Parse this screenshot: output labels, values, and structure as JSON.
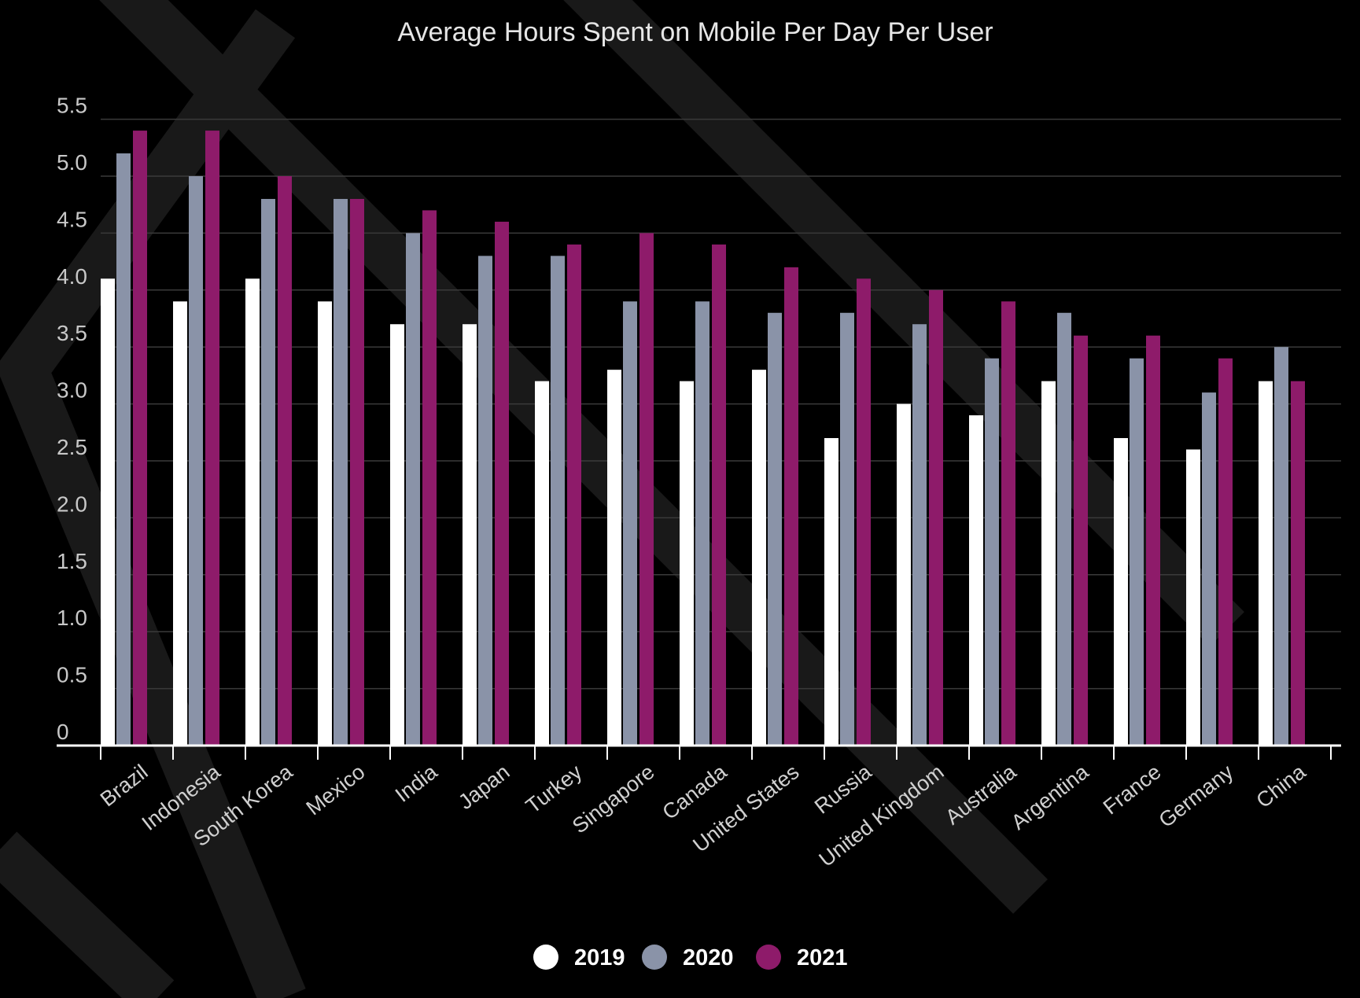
{
  "chart_data": {
    "type": "bar",
    "title": "Average Hours Spent on Mobile Per Day Per User",
    "xlabel": "",
    "ylabel": "",
    "ylim": [
      0,
      5.5
    ],
    "y_ticks": [
      0,
      0.5,
      1.0,
      1.5,
      2.0,
      2.5,
      3.0,
      3.5,
      4.0,
      4.5,
      5.0,
      5.5
    ],
    "y_tick_labels": [
      "0",
      "0.5",
      "1.0",
      "1.5",
      "2.0",
      "2.5",
      "3.0",
      "3.5",
      "4.0",
      "4.5",
      "5.0",
      "5.5"
    ],
    "grid": true,
    "legend_position": "bottom-center",
    "categories": [
      "Brazil",
      "Indonesia",
      "South Korea",
      "Mexico",
      "India",
      "Japan",
      "Turkey",
      "Singapore",
      "Canada",
      "United States",
      "Russia",
      "United Kingdom",
      "Australia",
      "Argentina",
      "France",
      "Germany",
      "China"
    ],
    "series": [
      {
        "name": "2019",
        "color": "#ffffff",
        "values": [
          4.1,
          3.9,
          4.1,
          3.9,
          3.7,
          3.7,
          3.2,
          3.3,
          3.2,
          3.3,
          2.7,
          3.0,
          2.9,
          3.2,
          2.7,
          2.6,
          3.2
        ]
      },
      {
        "name": "2020",
        "color": "#8a93a8",
        "values": [
          5.2,
          5.0,
          4.8,
          4.8,
          4.5,
          4.3,
          4.3,
          3.9,
          3.9,
          3.8,
          3.8,
          3.7,
          3.4,
          3.8,
          3.4,
          3.1,
          3.5
        ]
      },
      {
        "name": "2021",
        "color": "#8e1b6a",
        "values": [
          5.4,
          5.4,
          5.0,
          4.8,
          4.7,
          4.6,
          4.4,
          4.5,
          4.4,
          4.2,
          4.1,
          4.0,
          3.9,
          3.6,
          3.6,
          3.4,
          3.2
        ]
      }
    ]
  }
}
